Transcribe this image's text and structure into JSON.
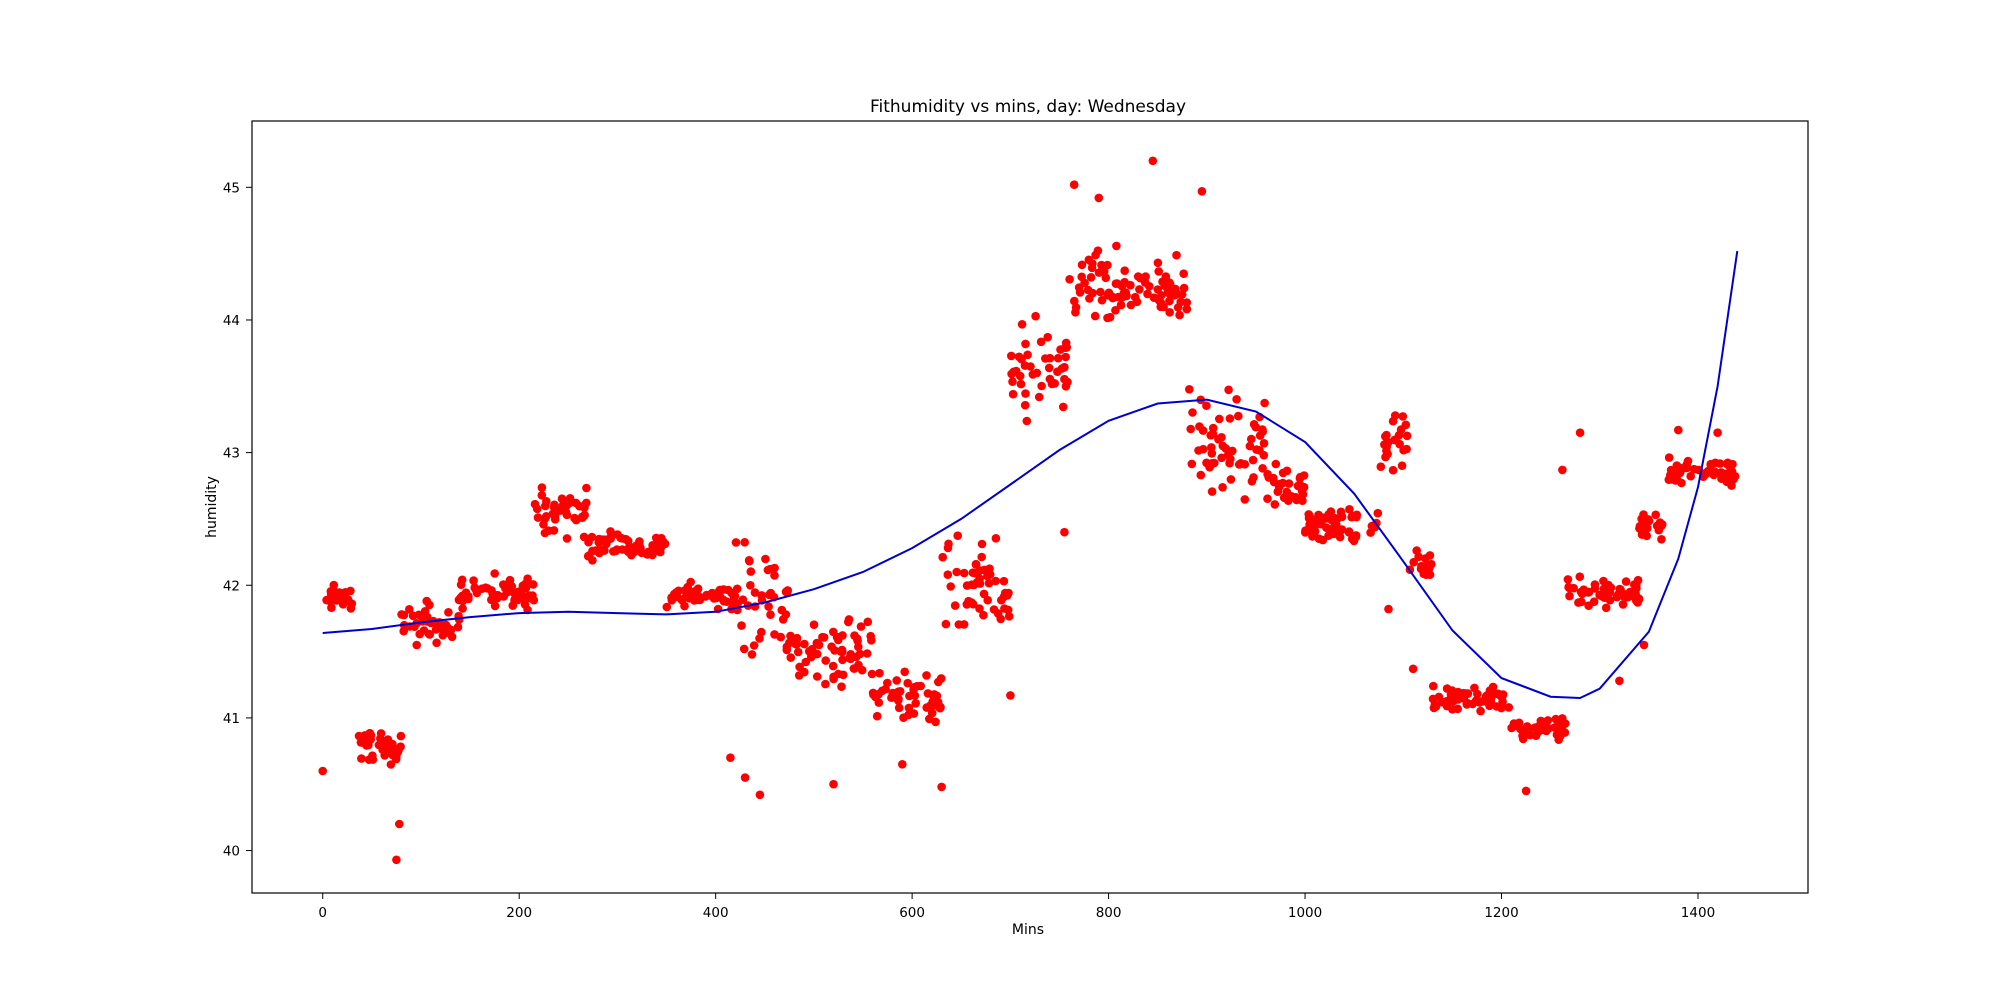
{
  "chart_data": {
    "type": "scatter",
    "title": "Fithumidity vs mins, day: Wednesday",
    "xlabel": "Mins",
    "ylabel": "humidity",
    "xlim": [
      -72,
      1512
    ],
    "ylim": [
      39.68,
      45.5
    ],
    "xticks": [
      0,
      200,
      400,
      600,
      800,
      1000,
      1200,
      1400
    ],
    "yticks": [
      40,
      41,
      42,
      43,
      44,
      45
    ],
    "grid": false,
    "legend": "none",
    "colors": {
      "points": "#ff0000",
      "fit": "#0000cc",
      "axes": "#000000"
    },
    "series": [
      {
        "kind": "scatter",
        "segments": [
          {
            "x0": 0,
            "x1": 35,
            "mean": 41.9,
            "spread": 0.09
          },
          {
            "x0": 35,
            "x1": 80,
            "mean": 40.78,
            "spread": 0.12
          },
          {
            "x0": 80,
            "x1": 140,
            "mean": 41.72,
            "spread": 0.15
          },
          {
            "x0": 140,
            "x1": 215,
            "mean": 41.95,
            "spread": 0.12
          },
          {
            "x0": 215,
            "x1": 270,
            "mean": 42.55,
            "spread": 0.18
          },
          {
            "x0": 270,
            "x1": 350,
            "mean": 42.3,
            "spread": 0.1
          },
          {
            "x0": 350,
            "x1": 420,
            "mean": 41.92,
            "spread": 0.08
          },
          {
            "x0": 420,
            "x1": 475,
            "mean": 41.9,
            "spread": 0.5
          },
          {
            "x0": 475,
            "x1": 560,
            "mean": 41.5,
            "spread": 0.25
          },
          {
            "x0": 560,
            "x1": 630,
            "mean": 41.15,
            "spread": 0.18
          },
          {
            "x0": 630,
            "x1": 700,
            "mean": 41.95,
            "spread": 0.35
          },
          {
            "x0": 700,
            "x1": 760,
            "mean": 43.6,
            "spread": 0.35
          },
          {
            "x0": 760,
            "x1": 880,
            "mean": 44.25,
            "spread": 0.25
          },
          {
            "x0": 880,
            "x1": 960,
            "mean": 43.05,
            "spread": 0.35
          },
          {
            "x0": 960,
            "x1": 1000,
            "mean": 42.75,
            "spread": 0.15
          },
          {
            "x0": 1000,
            "x1": 1075,
            "mean": 42.45,
            "spread": 0.12
          },
          {
            "x0": 1075,
            "x1": 1105,
            "mean": 43.1,
            "spread": 0.2
          },
          {
            "x0": 1105,
            "x1": 1130,
            "mean": 42.15,
            "spread": 0.1
          },
          {
            "x0": 1130,
            "x1": 1210,
            "mean": 41.15,
            "spread": 0.1
          },
          {
            "x0": 1210,
            "x1": 1265,
            "mean": 40.92,
            "spread": 0.1
          },
          {
            "x0": 1265,
            "x1": 1340,
            "mean": 41.95,
            "spread": 0.12
          },
          {
            "x0": 1340,
            "x1": 1370,
            "mean": 42.45,
            "spread": 0.1
          },
          {
            "x0": 1370,
            "x1": 1440,
            "mean": 42.85,
            "spread": 0.1
          }
        ],
        "outliers": [
          {
            "x": 0,
            "y": 40.6
          },
          {
            "x": 75,
            "y": 39.93
          },
          {
            "x": 78,
            "y": 40.2
          },
          {
            "x": 415,
            "y": 40.7
          },
          {
            "x": 430,
            "y": 40.55
          },
          {
            "x": 445,
            "y": 40.42
          },
          {
            "x": 520,
            "y": 40.5
          },
          {
            "x": 590,
            "y": 40.65
          },
          {
            "x": 630,
            "y": 40.48
          },
          {
            "x": 700,
            "y": 41.17
          },
          {
            "x": 755,
            "y": 42.4
          },
          {
            "x": 765,
            "y": 45.02
          },
          {
            "x": 790,
            "y": 44.92
          },
          {
            "x": 845,
            "y": 45.2
          },
          {
            "x": 895,
            "y": 44.97
          },
          {
            "x": 1085,
            "y": 41.82
          },
          {
            "x": 1110,
            "y": 41.37
          },
          {
            "x": 1225,
            "y": 40.45
          },
          {
            "x": 1262,
            "y": 42.87
          },
          {
            "x": 1280,
            "y": 43.15
          },
          {
            "x": 1320,
            "y": 41.28
          },
          {
            "x": 1345,
            "y": 41.55
          },
          {
            "x": 1380,
            "y": 43.17
          },
          {
            "x": 1420,
            "y": 43.15
          }
        ]
      },
      {
        "kind": "line",
        "points": [
          [
            0,
            41.64
          ],
          [
            50,
            41.67
          ],
          [
            100,
            41.72
          ],
          [
            150,
            41.76
          ],
          [
            200,
            41.79
          ],
          [
            250,
            41.8
          ],
          [
            300,
            41.79
          ],
          [
            350,
            41.78
          ],
          [
            400,
            41.8
          ],
          [
            450,
            41.87
          ],
          [
            500,
            41.97
          ],
          [
            550,
            42.1
          ],
          [
            600,
            42.28
          ],
          [
            650,
            42.5
          ],
          [
            700,
            42.76
          ],
          [
            750,
            43.02
          ],
          [
            800,
            43.24
          ],
          [
            850,
            43.37
          ],
          [
            900,
            43.4
          ],
          [
            950,
            43.31
          ],
          [
            1000,
            43.08
          ],
          [
            1050,
            42.69
          ],
          [
            1100,
            42.18
          ],
          [
            1150,
            41.66
          ],
          [
            1200,
            41.3
          ],
          [
            1250,
            41.16
          ],
          [
            1280,
            41.15
          ],
          [
            1300,
            41.22
          ],
          [
            1350,
            41.65
          ],
          [
            1380,
            42.2
          ],
          [
            1400,
            42.74
          ],
          [
            1420,
            43.5
          ],
          [
            1440,
            44.52
          ]
        ]
      }
    ]
  }
}
